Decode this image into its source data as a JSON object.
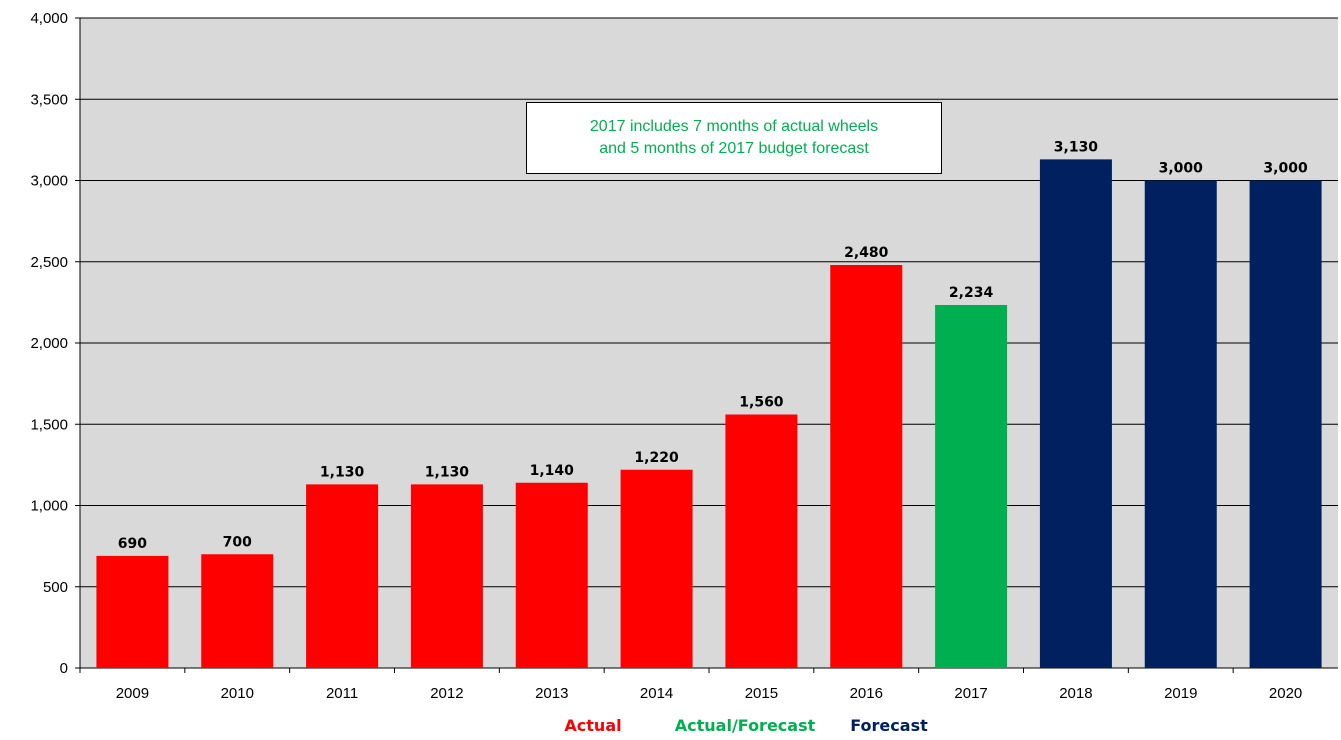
{
  "colors": {
    "actual": "#ff0000",
    "actual_forecast": "#00b050",
    "forecast": "#002060",
    "plot_background": "#d9d9d9",
    "gridline": "#000000"
  },
  "annotation": {
    "line1": "2017 includes 7 months of actual wheels",
    "line2": "and 5 months of 2017 budget forecast"
  },
  "legend": [
    {
      "label": "Actual",
      "color_key": "actual"
    },
    {
      "label": "Actual/Forecast",
      "color_key": "actual_forecast"
    },
    {
      "label": "Forecast",
      "color_key": "forecast"
    }
  ],
  "chart_data": {
    "type": "bar",
    "title": "",
    "xlabel": "",
    "ylabel": "",
    "categories": [
      "2009",
      "2010",
      "2011",
      "2012",
      "2013",
      "2014",
      "2015",
      "2016",
      "2017",
      "2018",
      "2019",
      "2020"
    ],
    "values": [
      690,
      700,
      1130,
      1130,
      1140,
      1220,
      1560,
      2480,
      2234,
      3130,
      3000,
      3000
    ],
    "value_labels": [
      "690",
      "700",
      "1,130",
      "1,130",
      "1,140",
      "1,220",
      "1,560",
      "2,480",
      "2,234",
      "3,130",
      "3,000",
      "3,000"
    ],
    "bar_groups": [
      "actual",
      "actual",
      "actual",
      "actual",
      "actual",
      "actual",
      "actual",
      "actual",
      "actual_forecast",
      "forecast",
      "forecast",
      "forecast"
    ],
    "ylim": [
      0,
      4000
    ],
    "yticks": [
      0,
      500,
      1000,
      1500,
      2000,
      2500,
      3000,
      3500,
      4000
    ],
    "ytick_labels": [
      "0",
      "500",
      "1,000",
      "1,500",
      "2,000",
      "2,500",
      "3,000",
      "3,500",
      "4,000"
    ],
    "grid": true,
    "legend_position": "bottom-center"
  }
}
